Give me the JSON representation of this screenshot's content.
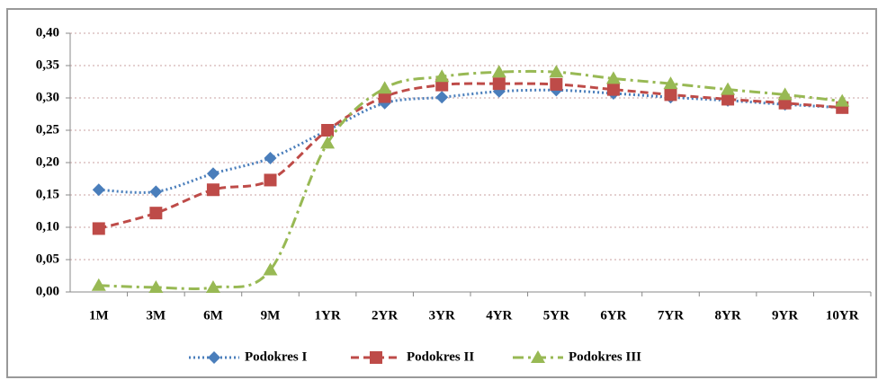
{
  "chart_data": {
    "type": "line",
    "categories": [
      "1M",
      "3M",
      "6M",
      "9M",
      "1YR",
      "2YR",
      "3YR",
      "4YR",
      "5YR",
      "6YR",
      "7YR",
      "8YR",
      "9YR",
      "10YR"
    ],
    "series": [
      {
        "name": "Podokres I",
        "color": "#4a7ebb",
        "linestyle": "dotted",
        "marker": "diamond",
        "values": [
          0.158,
          0.155,
          0.183,
          0.207,
          0.25,
          0.292,
          0.301,
          0.31,
          0.312,
          0.307,
          0.301,
          0.296,
          0.29,
          0.285
        ]
      },
      {
        "name": "Podokres II",
        "color": "#be4b48",
        "linestyle": "dashed",
        "marker": "square",
        "values": [
          0.098,
          0.122,
          0.158,
          0.173,
          0.25,
          0.302,
          0.32,
          0.322,
          0.321,
          0.313,
          0.305,
          0.298,
          0.292,
          0.285
        ]
      },
      {
        "name": "Podokres III",
        "color": "#98b954",
        "linestyle": "dashdot",
        "marker": "triangle",
        "values": [
          0.01,
          0.007,
          0.007,
          0.034,
          0.23,
          0.315,
          0.333,
          0.34,
          0.34,
          0.33,
          0.322,
          0.313,
          0.305,
          0.295
        ]
      }
    ],
    "ylim": [
      0,
      0.4
    ],
    "yticks": [
      {
        "value": 0,
        "label": "0,00"
      },
      {
        "value": 0.05,
        "label": "0,05"
      },
      {
        "value": 0.1,
        "label": "0,10"
      },
      {
        "value": 0.15,
        "label": "0,15"
      },
      {
        "value": 0.2,
        "label": "0,20"
      },
      {
        "value": 0.25,
        "label": "0,25"
      },
      {
        "value": 0.3,
        "label": "0,30"
      },
      {
        "value": 0.35,
        "label": "0,35"
      },
      {
        "value": 0.4,
        "label": "0,40"
      }
    ],
    "grid": true,
    "legend": "bottom"
  }
}
